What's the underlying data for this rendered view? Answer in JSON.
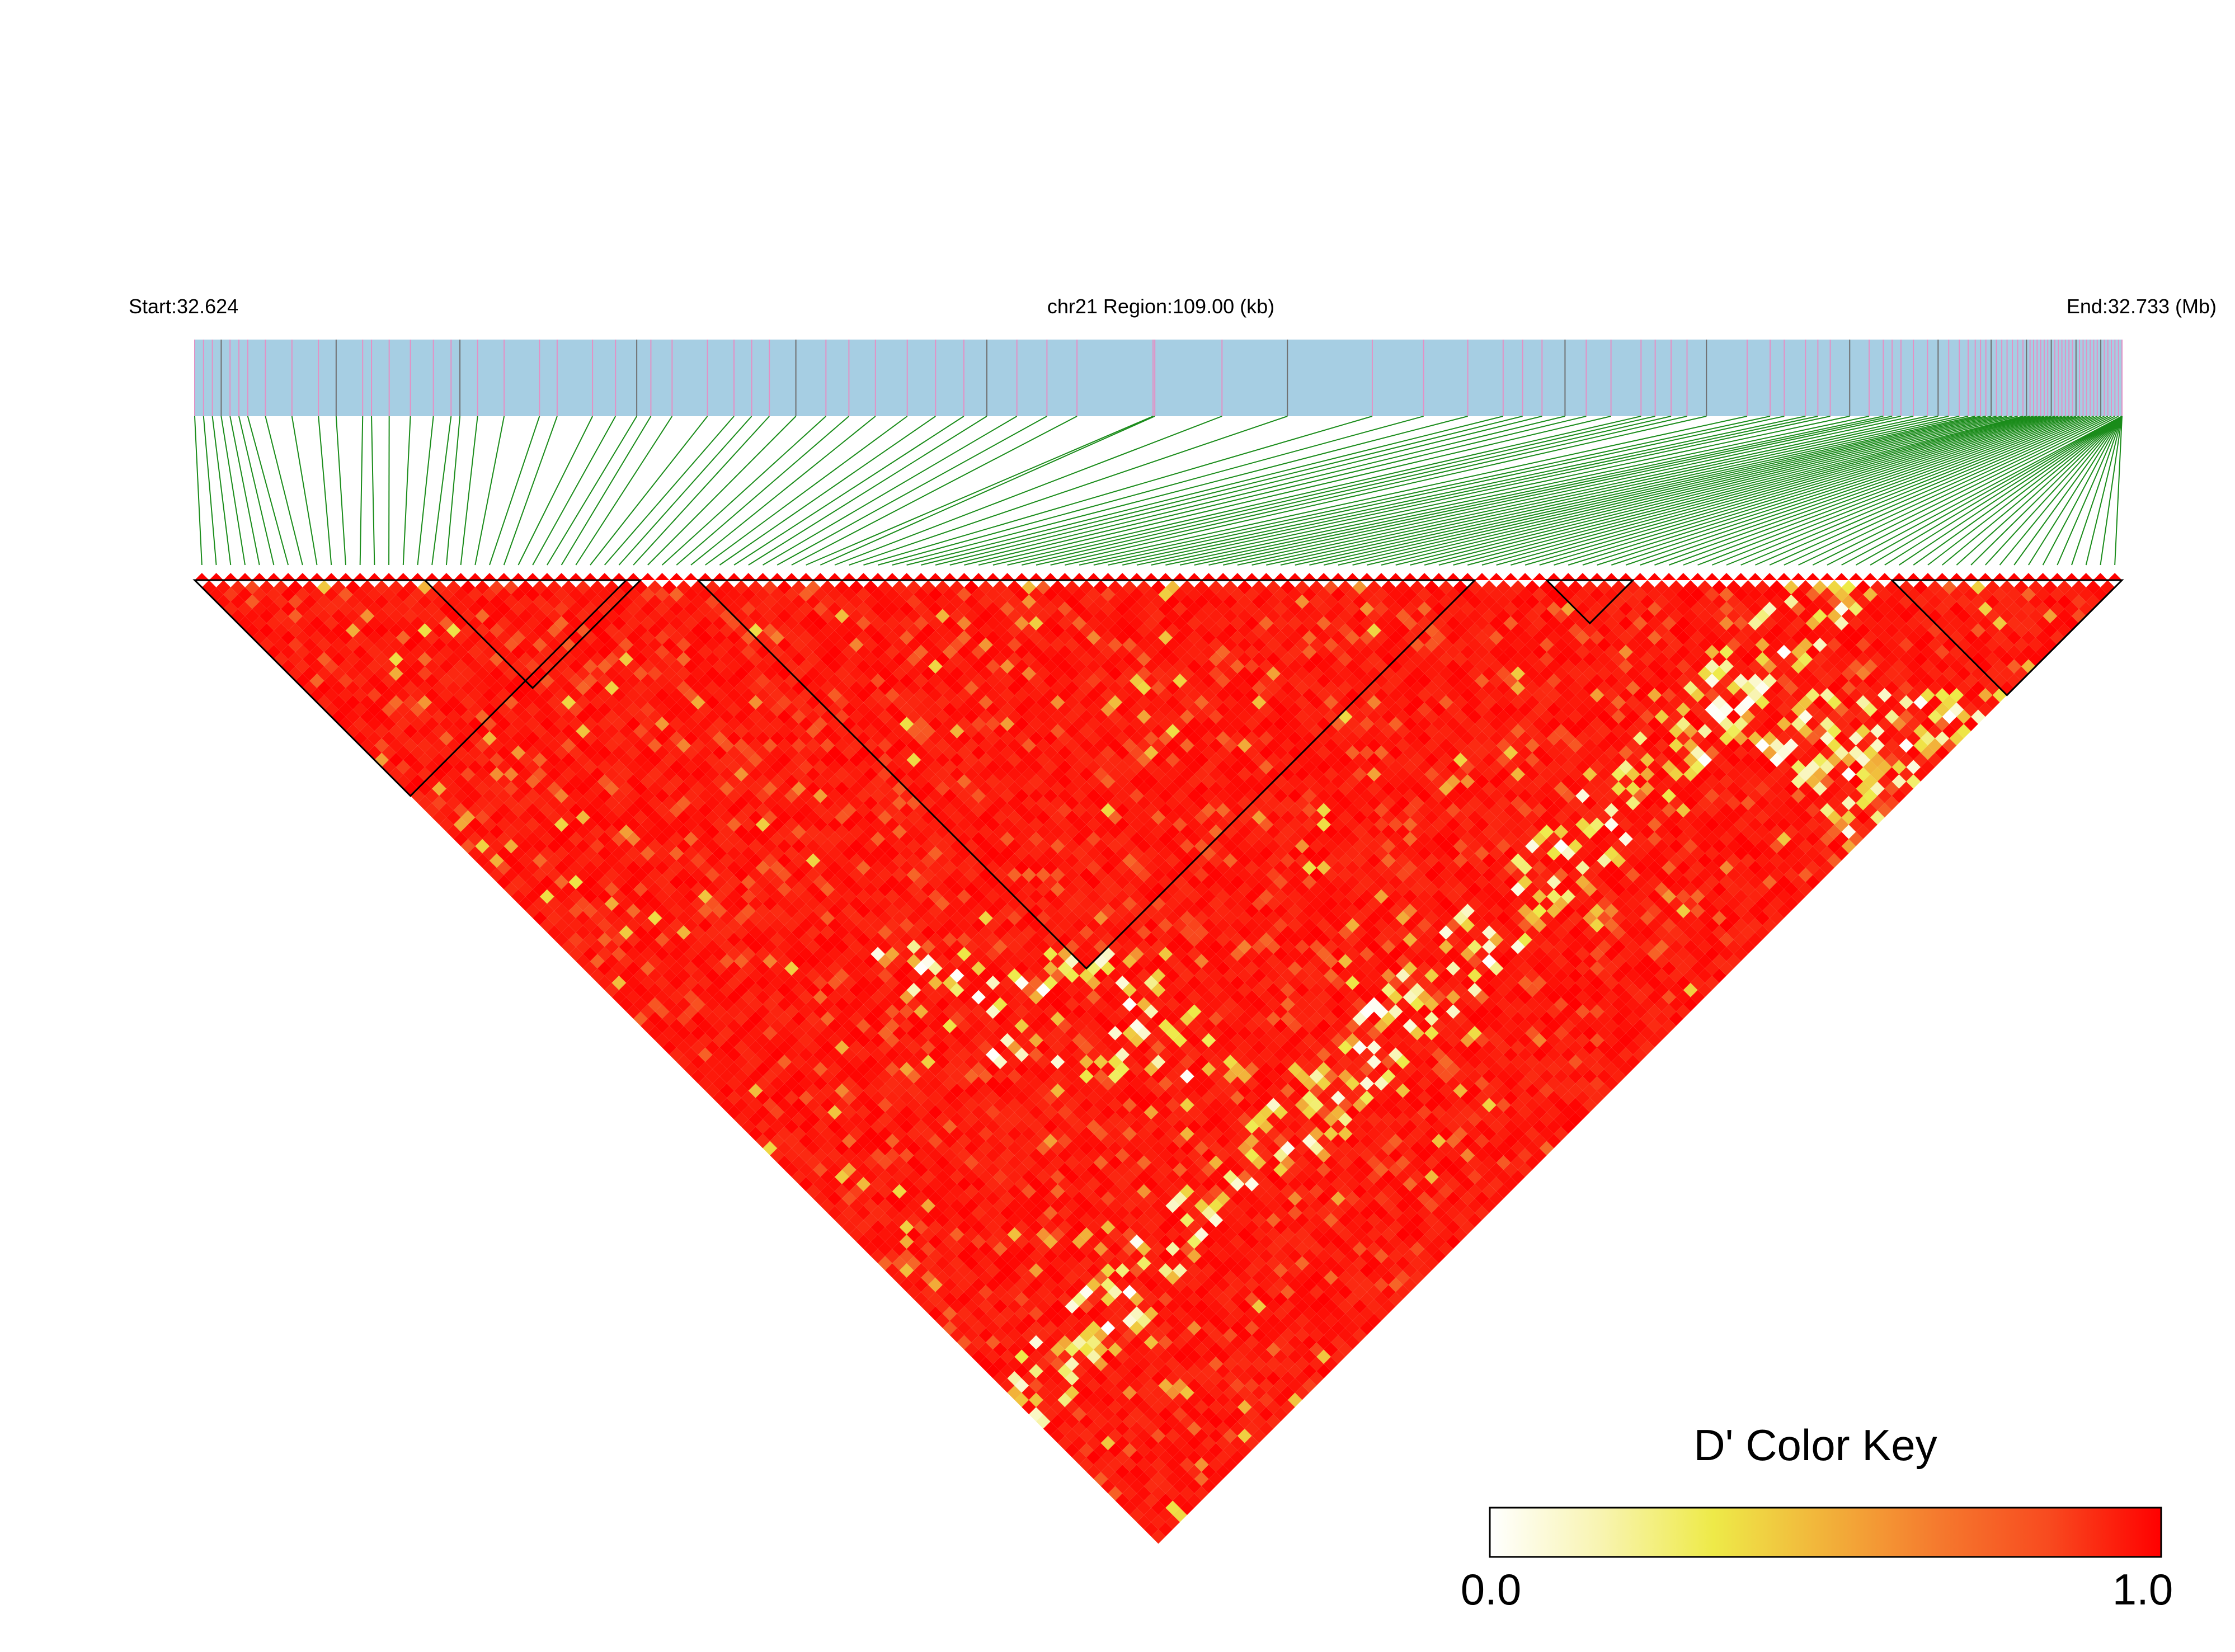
{
  "header": {
    "start_label": "Start:32.624",
    "region_label": "chr21 Region:109.00 (kb)",
    "end_label": "End:32.733 (Mb)"
  },
  "colors": {
    "track_background": "#a6cee3",
    "marker_pink": "#e391c5",
    "marker_gray": "#6f6f6f",
    "connector_green": "#1a8c1a",
    "block_outline": "#000000",
    "ld_high": "#ff0000",
    "ld_mid": "#eeea48",
    "ld_low": "#ffffff"
  },
  "chart_data": {
    "type": "heatmap",
    "description_value": "D'",
    "n_snps": 134,
    "region": {
      "chromosome": "chr21",
      "start_mb": 32.624,
      "end_mb": 32.733,
      "length_kb": 109.0
    },
    "snp_positions_mb": [
      32.624,
      32.6245,
      32.625,
      32.6255,
      32.626,
      32.6265,
      32.627,
      32.628,
      32.6295,
      32.631,
      32.632,
      32.6335,
      32.634,
      32.635,
      32.6362,
      32.6375,
      32.6385,
      32.639,
      32.64,
      32.6415,
      32.6435,
      32.6445,
      32.6465,
      32.6478,
      32.649,
      32.6498,
      32.651,
      32.653,
      32.6545,
      32.6555,
      32.6565,
      32.658,
      32.6597,
      32.661,
      32.6625,
      32.6643,
      32.6659,
      32.6675,
      32.6688,
      32.6705,
      32.6722,
      32.6739,
      32.6782,
      32.6783,
      32.6821,
      32.6858,
      32.6906,
      32.6935,
      32.696,
      32.698,
      32.6991,
      32.7002,
      32.7015,
      32.7027,
      32.7041,
      32.7058,
      32.7066,
      32.7075,
      32.7084,
      32.7095,
      32.7118,
      32.7131,
      32.7139,
      32.7151,
      32.7158,
      32.7165,
      32.7176,
      32.7187,
      32.7195,
      32.72,
      32.7205,
      32.7212,
      32.722,
      32.7226,
      32.7232,
      32.7238,
      32.7243,
      32.7247,
      32.725,
      32.7253,
      32.7256,
      32.7259,
      32.7262,
      32.7265,
      32.7268,
      32.7271,
      32.7274,
      32.7276,
      32.7278,
      32.728,
      32.7282,
      32.7284,
      32.7286,
      32.7288,
      32.729,
      32.7292,
      32.7294,
      32.7296,
      32.7298,
      32.73,
      32.7302,
      32.7304,
      32.7306,
      32.7308,
      32.731,
      32.7312,
      32.7314,
      32.7316,
      32.7318,
      32.732,
      32.7322,
      32.7324,
      32.7326,
      32.7328,
      32.733,
      32.733,
      32.733,
      32.733,
      32.733,
      32.733,
      32.733,
      32.733,
      32.733,
      32.733,
      32.733,
      32.733,
      32.733,
      32.733,
      32.733,
      32.733,
      32.733,
      32.733,
      32.733,
      32.733
    ],
    "haplotype_blocks": [
      {
        "first_snp": 0,
        "last_snp": 29
      },
      {
        "first_snp": 16,
        "last_snp": 30
      },
      {
        "first_snp": 35,
        "last_snp": 88
      },
      {
        "first_snp": 94,
        "last_snp": 99
      },
      {
        "first_snp": 118,
        "last_snp": 133
      }
    ],
    "color_key": {
      "title": "D' Color Key",
      "min_label": "0.0",
      "max_label": "1.0",
      "range": [
        0.0,
        1.0
      ],
      "gradient": [
        "#ffffff",
        "#f8f4b0",
        "#eeea48",
        "#f2b23a",
        "#f57a2e",
        "#f84a1f",
        "#ff0000"
      ]
    }
  }
}
